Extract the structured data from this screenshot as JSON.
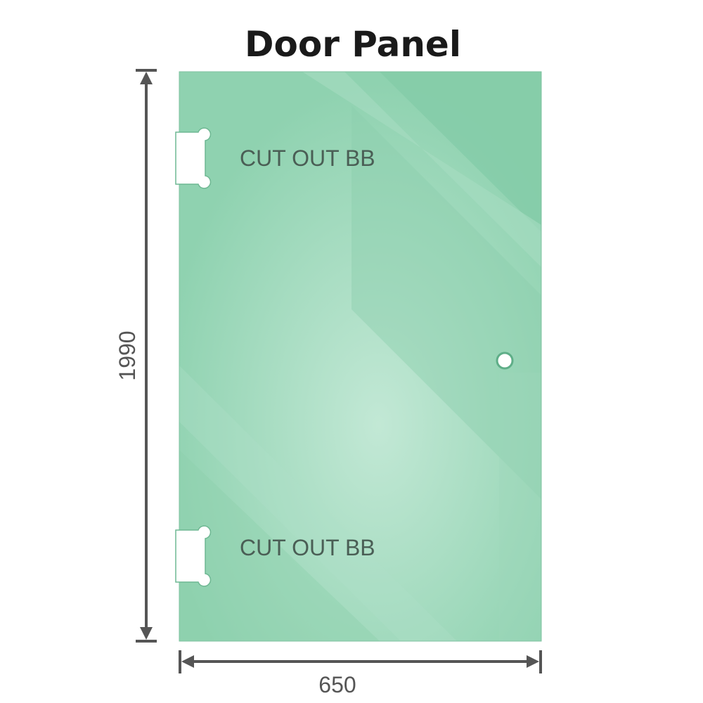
{
  "title": "Door Panel",
  "cutouts": [
    {
      "label": "CUT OUT BB"
    },
    {
      "label": "CUT OUT BB"
    }
  ],
  "dimensions": {
    "height": "1990",
    "width": "650"
  },
  "colors": {
    "glass": "#88cfab",
    "glass_light": "#bfe6d3",
    "dimension_line": "#555555",
    "label_text": "#4a5e55"
  }
}
